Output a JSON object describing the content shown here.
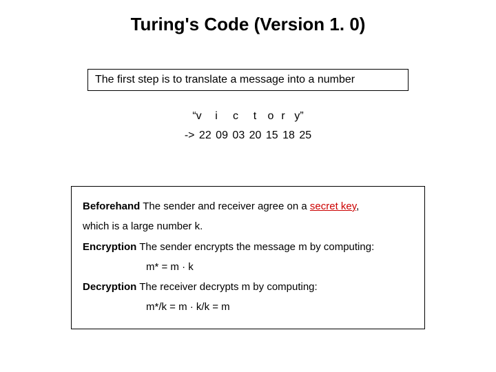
{
  "title": "Turing's Code (Version 1. 0)",
  "step_box": "The first step is to translate a message into a number",
  "letters": {
    "quote_open": "“v",
    "c1": "i",
    "c2": "c",
    "c3": "t",
    "c4": "o",
    "c5": "r",
    "quote_close": "y”"
  },
  "mapping": "-> 22 09 03 20 15 18 25",
  "body": {
    "beforehand_label": "Beforehand",
    "beforehand_text_1": " The sender and receiver agree on a ",
    "secret_key": "secret key",
    "beforehand_text_2": ",",
    "beforehand_line2": "which is a large number k.",
    "encryption_label": "Encryption",
    "encryption_text": " The sender encrypts the message m by computing:",
    "encryption_formula": "m* = m · k",
    "decryption_label": "Decryption",
    "decryption_text": " The receiver decrypts m by computing:",
    "decryption_formula": "m*/k = m · k/k = m"
  },
  "colors": {
    "secret_red": "#cc0000",
    "border": "#000000",
    "background": "#ffffff",
    "text": "#000000"
  },
  "fonts": {
    "family": "Comic Sans MS",
    "title_size_pt": 20,
    "body_size_pt": 12
  }
}
